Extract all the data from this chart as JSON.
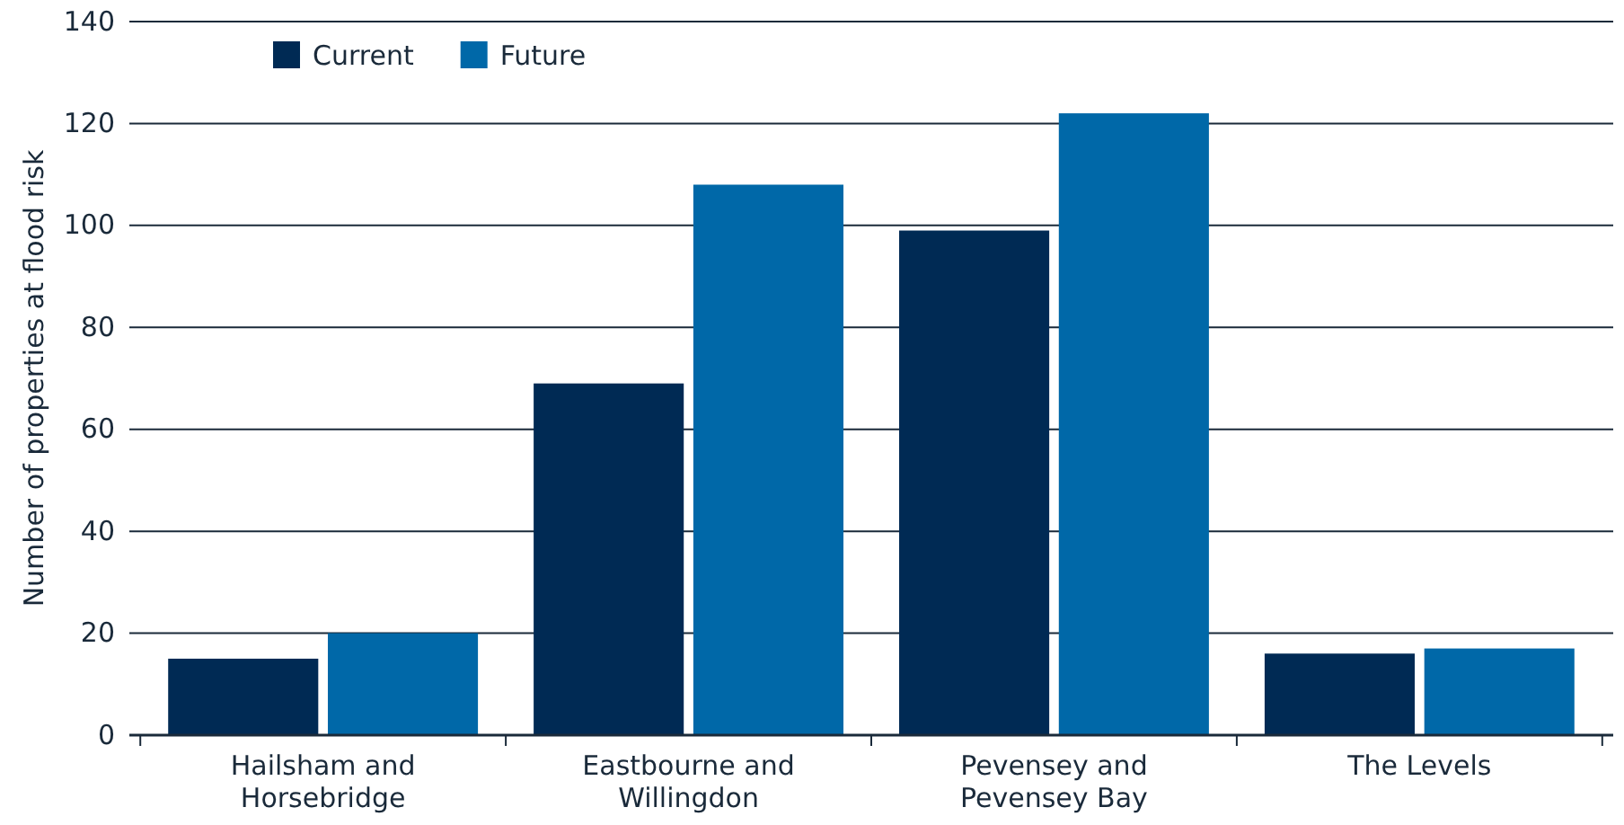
{
  "chart_data": {
    "type": "bar",
    "ylabel": "Number of properties at flood risk",
    "categories": [
      "Hailsham and Horsebridge",
      "Eastbourne and Willingdon",
      "Pevensey and Pevensey Bay",
      "The Levels"
    ],
    "series": [
      {
        "name": "Current",
        "color": "#002a54",
        "values": [
          15,
          69,
          99,
          16
        ]
      },
      {
        "name": "Future",
        "color": "#0068a8",
        "values": [
          20,
          108,
          122,
          17
        ]
      }
    ],
    "ylim": [
      0,
      140
    ],
    "yticks": [
      0,
      20,
      40,
      60,
      80,
      100,
      120,
      140
    ],
    "grid": "y",
    "legend": "top left"
  }
}
